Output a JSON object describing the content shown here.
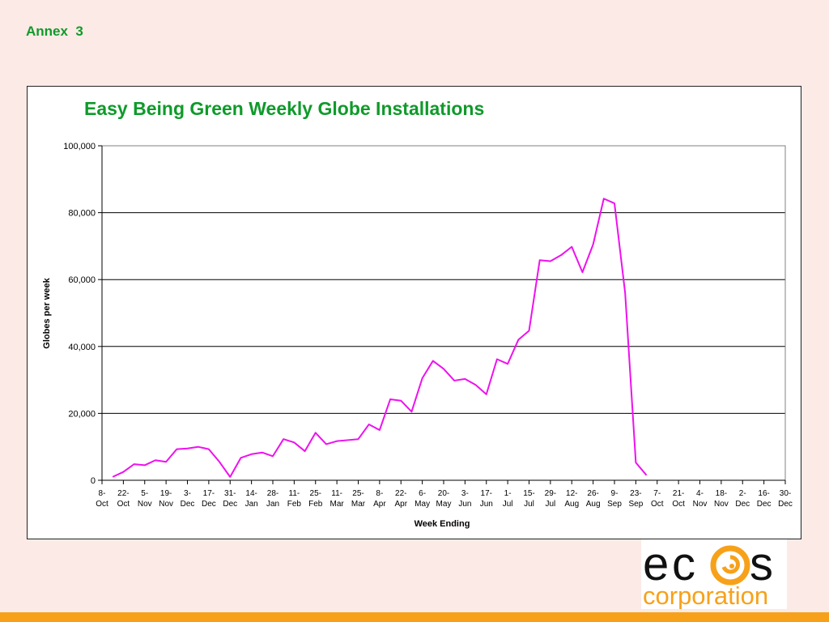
{
  "header": {
    "annex_label": "Annex  3"
  },
  "colors": {
    "title_green": "#0f9a2a",
    "series_magenta": "#ee11ee",
    "accent_orange": "#f7a11a",
    "background": "#fbeae6"
  },
  "logo": {
    "text_top": "ecos",
    "text_bottom": "corporation"
  },
  "chart_data": {
    "type": "line",
    "title": "Easy Being Green Weekly Globe Installations",
    "xlabel": "Week Ending",
    "ylabel": "Globes per week",
    "ylim": [
      0,
      100000
    ],
    "y_ticks": [
      "0",
      "20,000",
      "40,000",
      "60,000",
      "80,000",
      "100,000"
    ],
    "y_tick_values": [
      0,
      20000,
      40000,
      60000,
      80000,
      100000
    ],
    "grid": "horizontal",
    "x_tick_labels": [
      [
        "8-",
        "Oct"
      ],
      [
        "22-",
        "Oct"
      ],
      [
        "5-",
        "Nov"
      ],
      [
        "19-",
        "Nov"
      ],
      [
        "3-",
        "Dec"
      ],
      [
        "17-",
        "Dec"
      ],
      [
        "31-",
        "Dec"
      ],
      [
        "14-",
        "Jan"
      ],
      [
        "28-",
        "Jan"
      ],
      [
        "11-",
        "Feb"
      ],
      [
        "25-",
        "Feb"
      ],
      [
        "11-",
        "Mar"
      ],
      [
        "25-",
        "Mar"
      ],
      [
        "8-",
        "Apr"
      ],
      [
        "22-",
        "Apr"
      ],
      [
        "6-",
        "May"
      ],
      [
        "20-",
        "May"
      ],
      [
        "3-",
        "Jun"
      ],
      [
        "17-",
        "Jun"
      ],
      [
        "1-",
        "Jul"
      ],
      [
        "15-",
        "Jul"
      ],
      [
        "29-",
        "Jul"
      ],
      [
        "12-",
        "Aug"
      ],
      [
        "26-",
        "Aug"
      ],
      [
        "9-",
        "Sep"
      ],
      [
        "23-",
        "Sep"
      ],
      [
        "7-",
        "Oct"
      ],
      [
        "21-",
        "Oct"
      ],
      [
        "4-",
        "Nov"
      ],
      [
        "18-",
        "Nov"
      ],
      [
        "2-",
        "Dec"
      ],
      [
        "16-",
        "Dec"
      ],
      [
        "30-",
        "Dec"
      ]
    ],
    "series": [
      {
        "values": [
          1000,
          2500,
          4800,
          4500,
          6000,
          5500,
          9300,
          9500,
          10000,
          9300,
          5500,
          1000,
          6700,
          7800,
          8300,
          7200,
          12300,
          11300,
          8700,
          14200,
          10800,
          11700,
          12000,
          12300,
          16700,
          15000,
          24200,
          23800,
          20500,
          30500,
          35700,
          33300,
          29800,
          30300,
          28500,
          25700,
          36200,
          34800,
          42000,
          44700,
          65800,
          65500,
          67300,
          69800,
          62200,
          70500,
          84200,
          82800,
          56000,
          5300,
          1500
        ]
      }
    ]
  }
}
